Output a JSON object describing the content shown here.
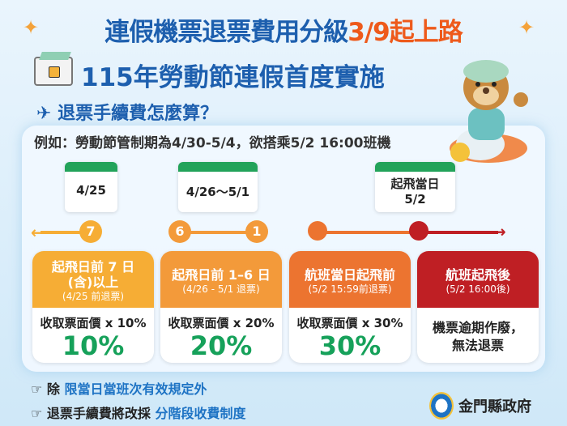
{
  "title": {
    "line1_main": "連假機票退票費用分級",
    "line1_highlight": "3/9起上路",
    "line2": "115年勞動節連假首度實施"
  },
  "section": {
    "question": "退票手續費怎麼算？",
    "example": "例如：勞動節管制期為4/30-5/4，欲搭乘5/2 16:00班機"
  },
  "calendars": [
    {
      "label": "4/25"
    },
    {
      "label": "4/26～5/1"
    },
    {
      "label": "起飛當日",
      "label2": "5/2"
    }
  ],
  "timeline": [
    "7",
    "6",
    "1"
  ],
  "tiers": [
    {
      "title": "起飛日前 7 日",
      "title2": "(含)以上",
      "sub": "(4/25 前退票)",
      "fee": "收取票面價 x 10%",
      "pct": "10%",
      "color": "#f6ad35"
    },
    {
      "title": "起飛日前 1–6 日",
      "sub": "(4/26 - 5/1 退票)",
      "fee": "收取票面價 x 20%",
      "pct": "20%",
      "color": "#f39a3a"
    },
    {
      "title": "航班當日起飛前",
      "sub": "(5/2 15:59前退票)",
      "fee": "收取票面價 x 30%",
      "pct": "30%",
      "color": "#ec7430"
    },
    {
      "title": "航班起飛後",
      "sub": "(5/2 16:00後)",
      "void1": "機票逾期作廢，",
      "void2": "無法退票",
      "color": "#bf1f24"
    }
  ],
  "notes": [
    {
      "prefix": "除",
      "highlight": "限當日當班次有效規定外"
    },
    {
      "prefix": "退票手續費將改採",
      "highlight": "分階段收費制度"
    }
  ],
  "logo": {
    "text": "金門縣政府"
  },
  "icons": [
    "sparkle-icon",
    "ticket-lock-icon",
    "airplane-icon",
    "calendar-icon",
    "pointing-hand-icon",
    "otter-pilot-mascot"
  ]
}
